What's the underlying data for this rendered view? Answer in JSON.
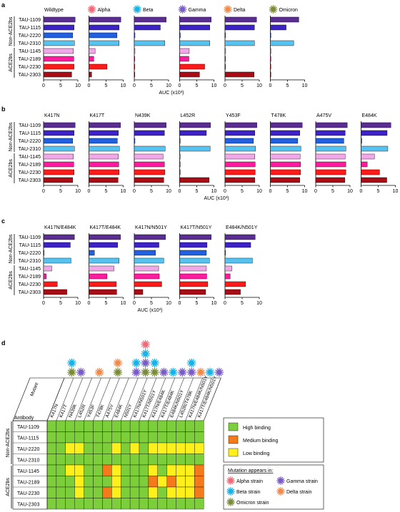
{
  "panel_labels": [
    "a",
    "b",
    "c",
    "d"
  ],
  "colors": {
    "antibodies": [
      "#5a2d91",
      "#3d22c8",
      "#1f5fe0",
      "#55c2f0",
      "#f0a8e8",
      "#ff1a9e",
      "#ff1a1a",
      "#a80c14"
    ],
    "heat": {
      "H": "#7ccf3a",
      "M": "#f47a1a",
      "L": "#ffef1a"
    },
    "strain": {
      "Alpha": "#f06b7a",
      "Beta": "#1ab2e6",
      "Gamma": "#7a5cc8",
      "Delta": "#f08a4b",
      "Omicron": "#7a8c3a"
    }
  },
  "group_labels": {
    "non_ace2bs": "Non-ACE2bs",
    "ace2bs": "ACE2bs"
  },
  "axis_ticks": [
    "0",
    "5",
    "10"
  ],
  "chart_data": [
    {
      "type": "bar",
      "panel": "a",
      "orientation": "horizontal",
      "categories": [
        "TAU-1109",
        "TAU-1115",
        "TAU-2220",
        "TAU-2310",
        "TAU-1145",
        "TAU-2189",
        "TAU-2230",
        "TAU-2303"
      ],
      "xlabel": "AUC (x10³)",
      "xlim": [
        0,
        10
      ],
      "series": [
        {
          "name": "Wildtype",
          "values": [
            9.2,
            8.9,
            8.5,
            9.0,
            8.7,
            8.8,
            8.9,
            8.2
          ]
        },
        {
          "name": "Alpha",
          "icon": "Alpha",
          "values": [
            9.3,
            8.8,
            8.2,
            8.8,
            1.8,
            1.4,
            5.3,
            0.8
          ]
        },
        {
          "name": "Beta",
          "icon": "Beta",
          "values": [
            9.3,
            7.6,
            0.2,
            8.9,
            0.2,
            0.1,
            0.1,
            0.1
          ]
        },
        {
          "name": "Gamma",
          "icon": "Gamma",
          "values": [
            9.2,
            8.8,
            0.2,
            8.8,
            2.8,
            2.7,
            7.3,
            5.8
          ]
        },
        {
          "name": "Delta",
          "icon": "Delta",
          "values": [
            9.2,
            8.6,
            0.1,
            8.6,
            0.2,
            0.1,
            0.1,
            8.5
          ]
        },
        {
          "name": "Omicron",
          "icon": "Omicron",
          "values": [
            8.3,
            4.6,
            0.1,
            6.8,
            0.1,
            0.1,
            0.1,
            0.1
          ]
        }
      ]
    },
    {
      "type": "bar",
      "panel": "b",
      "orientation": "horizontal",
      "categories": [
        "TAU-1109",
        "TAU-1115",
        "TAU-2220",
        "TAU-2310",
        "TAU-1145",
        "TAU-2189",
        "TAU-2230",
        "TAU-2303"
      ],
      "xlabel": "AUC (x10³)",
      "xlim": [
        0,
        10
      ],
      "series": [
        {
          "name": "K417N",
          "values": [
            9.2,
            8.9,
            8.5,
            9.0,
            8.7,
            8.8,
            8.9,
            8.5
          ]
        },
        {
          "name": "K417T",
          "values": [
            9.2,
            8.6,
            8.3,
            8.9,
            8.6,
            8.7,
            8.8,
            8.5
          ]
        },
        {
          "name": "N439K",
          "values": [
            9.3,
            8.8,
            0.2,
            9.0,
            8.4,
            8.8,
            8.9,
            8.6
          ]
        },
        {
          "name": "L452R",
          "values": [
            9.0,
            7.8,
            0.1,
            8.9,
            0.1,
            0.1,
            0.1,
            8.6
          ]
        },
        {
          "name": "Y453F",
          "values": [
            9.3,
            8.7,
            8.3,
            8.9,
            8.7,
            8.8,
            8.8,
            8.7
          ]
        },
        {
          "name": "T478K",
          "values": [
            9.3,
            8.6,
            8.0,
            8.9,
            8.7,
            8.8,
            8.8,
            8.6
          ]
        },
        {
          "name": "A475V",
          "values": [
            9.2,
            8.6,
            8.2,
            8.8,
            8.6,
            8.8,
            8.8,
            8.5
          ]
        },
        {
          "name": "E484K",
          "values": [
            8.7,
            7.6,
            0.2,
            7.8,
            3.9,
            1.8,
            5.4,
            7.5
          ]
        }
      ]
    },
    {
      "type": "bar",
      "panel": "c",
      "orientation": "horizontal",
      "categories": [
        "TAU-1109",
        "TAU-1115",
        "TAU-2220",
        "TAU-2310",
        "TAU-1145",
        "TAU-2189",
        "TAU-2230",
        "TAU-2303"
      ],
      "xlabel": "AUC (x10³)",
      "xlim": [
        0,
        10
      ],
      "series": [
        {
          "name": "K417N/E484K",
          "values": [
            9.0,
            7.8,
            0.1,
            8.0,
            2.4,
            0.8,
            4.0,
            6.8
          ]
        },
        {
          "name": "K417T/E484K",
          "values": [
            9.2,
            8.4,
            1.6,
            8.8,
            7.3,
            5.3,
            8.0,
            8.1
          ]
        },
        {
          "name": "K417N/N501Y",
          "values": [
            9.1,
            7.2,
            6.2,
            8.6,
            7.1,
            7.3,
            8.0,
            2.5
          ]
        },
        {
          "name": "K417T/N501Y",
          "values": [
            9.2,
            8.0,
            7.8,
            8.7,
            7.8,
            7.9,
            8.2,
            7.6
          ]
        },
        {
          "name": "E484K/N501Y",
          "values": [
            8.8,
            7.5,
            0.1,
            8.0,
            2.0,
            1.5,
            6.0,
            4.5
          ]
        }
      ]
    },
    {
      "type": "heatmap",
      "panel": "d",
      "corner_labels": {
        "column": "Mutant",
        "row": "Antibody"
      },
      "columns": [
        "K417N",
        "K417T",
        "N439K",
        "L452R",
        "Y453F",
        "T478K",
        "A475V",
        "E484K",
        "N501Y",
        "K417N/N501Y",
        "K417T/N501Y",
        "K417N/E484K",
        "K417T/E484K",
        "E484K/N501Y",
        "L452R/T478K",
        "K417N/E484K/N501Y",
        "K417T/E484K/N501Y"
      ],
      "column_strains": [
        [
          "Beta",
          "Omicron"
        ],
        [
          "Gamma"
        ],
        [],
        [
          "Delta"
        ],
        [],
        [
          "Delta",
          "Omicron"
        ],
        [],
        [
          "Beta",
          "Gamma"
        ],
        [
          "Alpha",
          "Beta",
          "Gamma",
          "Omicron"
        ],
        [
          "Beta",
          "Omicron"
        ],
        [
          "Gamma"
        ],
        [
          "Beta"
        ],
        [
          "Gamma"
        ],
        [
          "Beta",
          "Gamma"
        ],
        [
          "Delta"
        ],
        [
          "Beta"
        ],
        [
          "Gamma"
        ]
      ],
      "rows": [
        "TAU-1109",
        "TAU-1115",
        "TAU-2220",
        "TAU-2310",
        "TAU-1145",
        "TAU-2189",
        "TAU-2230",
        "TAU-2303"
      ],
      "values": [
        "HHHHHHHHHHHHHHHHH",
        "HHHHHHHHHHHHHHHHH",
        "HHLLHHHLHLHLLLLLL",
        "HHHHHHHHHHHHHHHHH",
        "HHLLHHMLHHHLHLLLM",
        "HHHLHHHLHHHMLMLLM",
        "HHHLHHMLHHHLHLLLM",
        "HHHHHHHHHHHHHHHHH"
      ],
      "legend": [
        {
          "key": "H",
          "label": "High binding"
        },
        {
          "key": "M",
          "label": "Medium binding"
        },
        {
          "key": "L",
          "label": "Low binding"
        }
      ],
      "strain_legend_title": "Mutation appears in:",
      "strain_legend": [
        {
          "key": "Alpha",
          "label": "Alpha strain"
        },
        {
          "key": "Gamma",
          "label": "Gamma strain"
        },
        {
          "key": "Beta",
          "label": "Beta strain"
        },
        {
          "key": "Delta",
          "label": "Delta strain"
        },
        {
          "key": "Omicron",
          "label": "Omicron strain"
        }
      ]
    }
  ]
}
